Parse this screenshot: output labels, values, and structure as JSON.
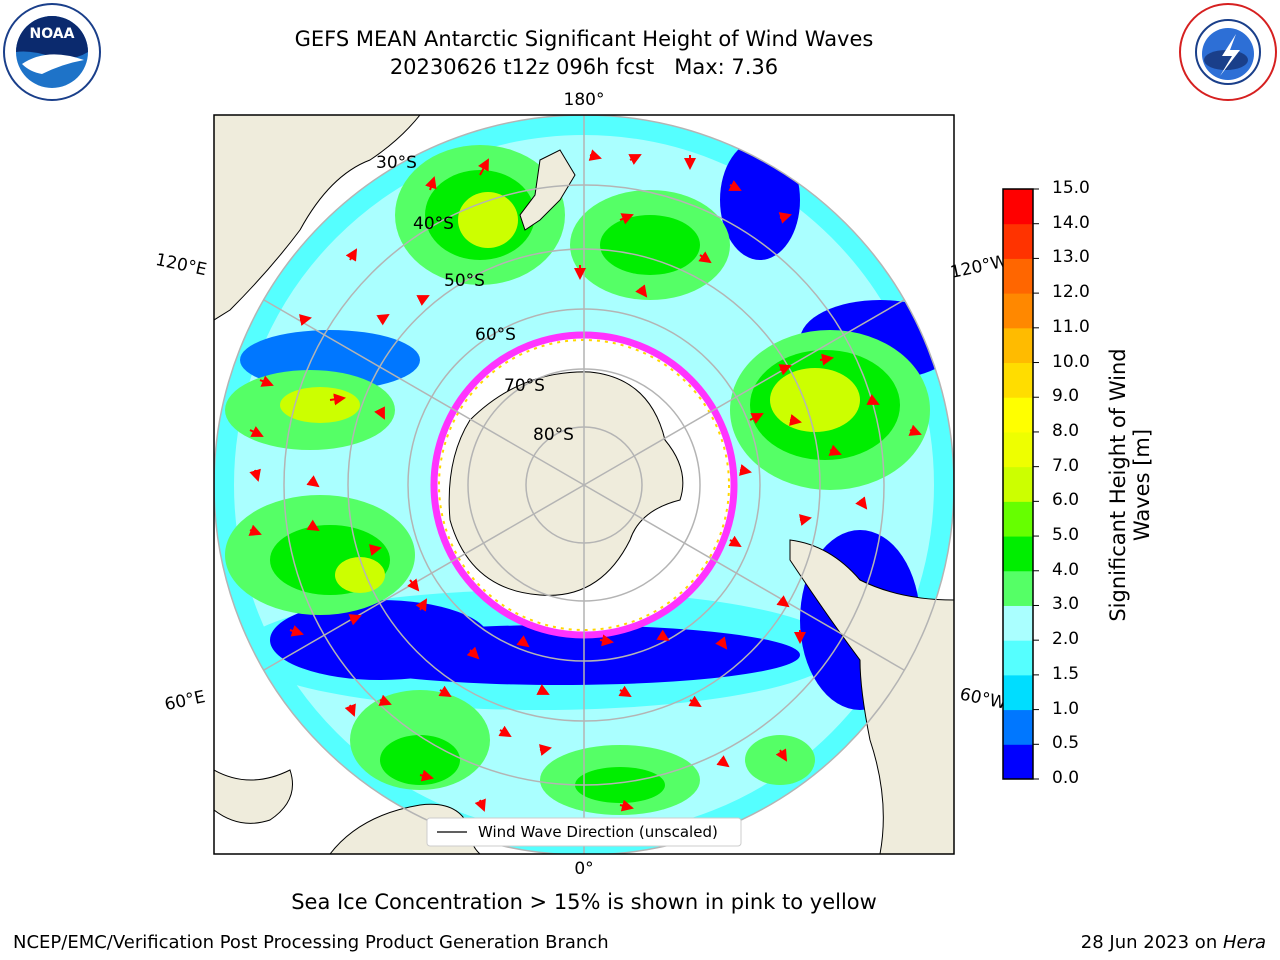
{
  "title": {
    "line1": "GEFS MEAN Antarctic Significant Height of Wind Waves",
    "line2": "20230626 t12z 096h fcst   Max: 7.36"
  },
  "logos": {
    "left": "NOAA",
    "right": "NATIONAL WEATHER SERVICE"
  },
  "map": {
    "projection": "south-polar-stereographic",
    "lat_labels": [
      "30°S",
      "40°S",
      "50°S",
      "60°S",
      "70°S",
      "80°S"
    ],
    "lon_labels": {
      "top": "180°",
      "bottom": "0°",
      "upper_left": "120°E",
      "lower_left": "60°E",
      "upper_right": "120°W",
      "lower_right": "60°W"
    },
    "legend": "Wind Wave Direction (unscaled)",
    "arrow_color": "#ff0000",
    "ice_colors": [
      "#ff33ff",
      "#ff99cc",
      "#ffd700"
    ],
    "land_color": "#efecdc"
  },
  "colorbar": {
    "label": "Significant Height of Wind Waves [m]",
    "ticks": [
      "0.0",
      "0.5",
      "1.0",
      "1.5",
      "2.0",
      "3.0",
      "4.0",
      "5.0",
      "6.0",
      "7.0",
      "8.0",
      "9.0",
      "10.0",
      "11.0",
      "12.0",
      "13.0",
      "14.0",
      "15.0"
    ],
    "colors": [
      "#0000ff",
      "#0077ff",
      "#00ddff",
      "#55ffff",
      "#aaffff",
      "#55ff66",
      "#00ee00",
      "#66ff00",
      "#ccff00",
      "#eeff00",
      "#ffff00",
      "#ffdd00",
      "#ffbb00",
      "#ff8800",
      "#ff6600",
      "#ff3300",
      "#ff0000"
    ]
  },
  "notes": {
    "ice": "Sea Ice Concentration > 15% is shown in pink to yellow",
    "credit": "NCEP/EMC/Verification Post Processing Product Generation Branch",
    "date_prefix": "28 Jun 2023 on ",
    "machine": "Hera"
  }
}
